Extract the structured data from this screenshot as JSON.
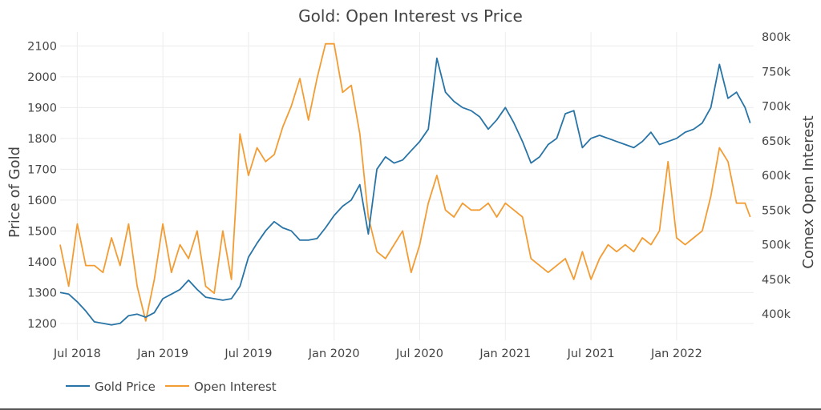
{
  "chart_data": {
    "type": "line",
    "title": "Gold: Open Interest vs Price",
    "ylabel_left": "Price of Gold",
    "ylabel_right": "Comex Open Interest",
    "x_range": [
      2018.4,
      2022.45
    ],
    "ylim_left": [
      1145,
      2145
    ],
    "ylim_right": [
      362000,
      807000
    ],
    "x_ticks": [
      {
        "label": "Jul 2018",
        "value": 2018.5
      },
      {
        "label": "Jan 2019",
        "value": 2019.0
      },
      {
        "label": "Jul 2019",
        "value": 2019.5
      },
      {
        "label": "Jan 2020",
        "value": 2020.0
      },
      {
        "label": "Jul 2020",
        "value": 2020.5
      },
      {
        "label": "Jan 2021",
        "value": 2021.0
      },
      {
        "label": "Jul 2021",
        "value": 2021.5
      },
      {
        "label": "Jan 2022",
        "value": 2022.0
      }
    ],
    "left_ticks": [
      1200,
      1300,
      1400,
      1500,
      1600,
      1700,
      1800,
      1900,
      2000,
      2100
    ],
    "left_tick_labels": [
      "1200",
      "1300",
      "1400",
      "1500",
      "1600",
      "1700",
      "1800",
      "1900",
      "2000",
      "2100"
    ],
    "right_ticks": [
      400000,
      450000,
      500000,
      550000,
      600000,
      650000,
      700000,
      750000,
      800000
    ],
    "right_tick_labels": [
      "400k",
      "450k",
      "500k",
      "550k",
      "600k",
      "650k",
      "700k",
      "750k",
      "800k"
    ],
    "legend_position": "bottom-left",
    "series": [
      {
        "name": "Gold Price",
        "axis": "left",
        "color": "#2874a6",
        "x": [
          2018.4,
          2018.45,
          2018.5,
          2018.55,
          2018.6,
          2018.65,
          2018.7,
          2018.75,
          2018.8,
          2018.85,
          2018.9,
          2018.95,
          2019.0,
          2019.05,
          2019.1,
          2019.15,
          2019.2,
          2019.25,
          2019.3,
          2019.35,
          2019.4,
          2019.45,
          2019.5,
          2019.55,
          2019.6,
          2019.65,
          2019.7,
          2019.75,
          2019.8,
          2019.85,
          2019.9,
          2019.95,
          2020.0,
          2020.05,
          2020.1,
          2020.15,
          2020.2,
          2020.25,
          2020.3,
          2020.35,
          2020.4,
          2020.45,
          2020.5,
          2020.55,
          2020.6,
          2020.65,
          2020.7,
          2020.75,
          2020.8,
          2020.85,
          2020.9,
          2020.95,
          2021.0,
          2021.05,
          2021.1,
          2021.15,
          2021.2,
          2021.25,
          2021.3,
          2021.35,
          2021.4,
          2021.45,
          2021.5,
          2021.55,
          2021.6,
          2021.65,
          2021.7,
          2021.75,
          2021.8,
          2021.85,
          2021.9,
          2021.95,
          2022.0,
          2022.05,
          2022.1,
          2022.15,
          2022.2,
          2022.25,
          2022.3,
          2022.35,
          2022.4,
          2022.43
        ],
        "values": [
          1300,
          1295,
          1270,
          1240,
          1205,
          1200,
          1195,
          1200,
          1225,
          1230,
          1220,
          1235,
          1280,
          1295,
          1310,
          1340,
          1310,
          1285,
          1280,
          1275,
          1280,
          1320,
          1415,
          1460,
          1500,
          1530,
          1510,
          1500,
          1470,
          1470,
          1475,
          1510,
          1550,
          1580,
          1600,
          1650,
          1490,
          1700,
          1740,
          1720,
          1730,
          1760,
          1790,
          1830,
          2060,
          1950,
          1920,
          1900,
          1890,
          1870,
          1830,
          1860,
          1900,
          1850,
          1790,
          1720,
          1740,
          1780,
          1800,
          1880,
          1890,
          1770,
          1800,
          1810,
          1800,
          1790,
          1780,
          1770,
          1790,
          1820,
          1780,
          1790,
          1800,
          1820,
          1830,
          1850,
          1900,
          2040,
          1930,
          1950,
          1900,
          1850
        ]
      },
      {
        "name": "Open Interest",
        "axis": "right",
        "color": "#f39c33",
        "x": [
          2018.4,
          2018.45,
          2018.5,
          2018.55,
          2018.6,
          2018.65,
          2018.7,
          2018.75,
          2018.8,
          2018.85,
          2018.9,
          2018.95,
          2019.0,
          2019.05,
          2019.1,
          2019.15,
          2019.2,
          2019.25,
          2019.3,
          2019.35,
          2019.4,
          2019.45,
          2019.5,
          2019.55,
          2019.6,
          2019.65,
          2019.7,
          2019.75,
          2019.8,
          2019.85,
          2019.9,
          2019.95,
          2020.0,
          2020.05,
          2020.1,
          2020.15,
          2020.2,
          2020.25,
          2020.3,
          2020.35,
          2020.4,
          2020.45,
          2020.5,
          2020.55,
          2020.6,
          2020.65,
          2020.7,
          2020.75,
          2020.8,
          2020.85,
          2020.9,
          2020.95,
          2021.0,
          2021.05,
          2021.1,
          2021.15,
          2021.2,
          2021.25,
          2021.3,
          2021.35,
          2021.4,
          2021.45,
          2021.5,
          2021.55,
          2021.6,
          2021.65,
          2021.7,
          2021.75,
          2021.8,
          2021.85,
          2021.9,
          2021.95,
          2022.0,
          2022.05,
          2022.1,
          2022.15,
          2022.2,
          2022.25,
          2022.3,
          2022.35,
          2022.4,
          2022.43
        ],
        "values": [
          500000,
          440000,
          530000,
          470000,
          470000,
          460000,
          510000,
          470000,
          530000,
          440000,
          390000,
          450000,
          530000,
          460000,
          500000,
          480000,
          520000,
          440000,
          430000,
          520000,
          450000,
          660000,
          600000,
          640000,
          620000,
          630000,
          670000,
          700000,
          740000,
          680000,
          740000,
          790000,
          790000,
          720000,
          730000,
          660000,
          540000,
          490000,
          480000,
          500000,
          520000,
          460000,
          500000,
          560000,
          600000,
          550000,
          540000,
          560000,
          550000,
          550000,
          560000,
          540000,
          560000,
          550000,
          540000,
          480000,
          470000,
          460000,
          470000,
          480000,
          450000,
          490000,
          450000,
          480000,
          500000,
          490000,
          500000,
          490000,
          510000,
          500000,
          520000,
          620000,
          510000,
          500000,
          510000,
          520000,
          570000,
          640000,
          620000,
          560000,
          560000,
          540000
        ]
      }
    ]
  }
}
